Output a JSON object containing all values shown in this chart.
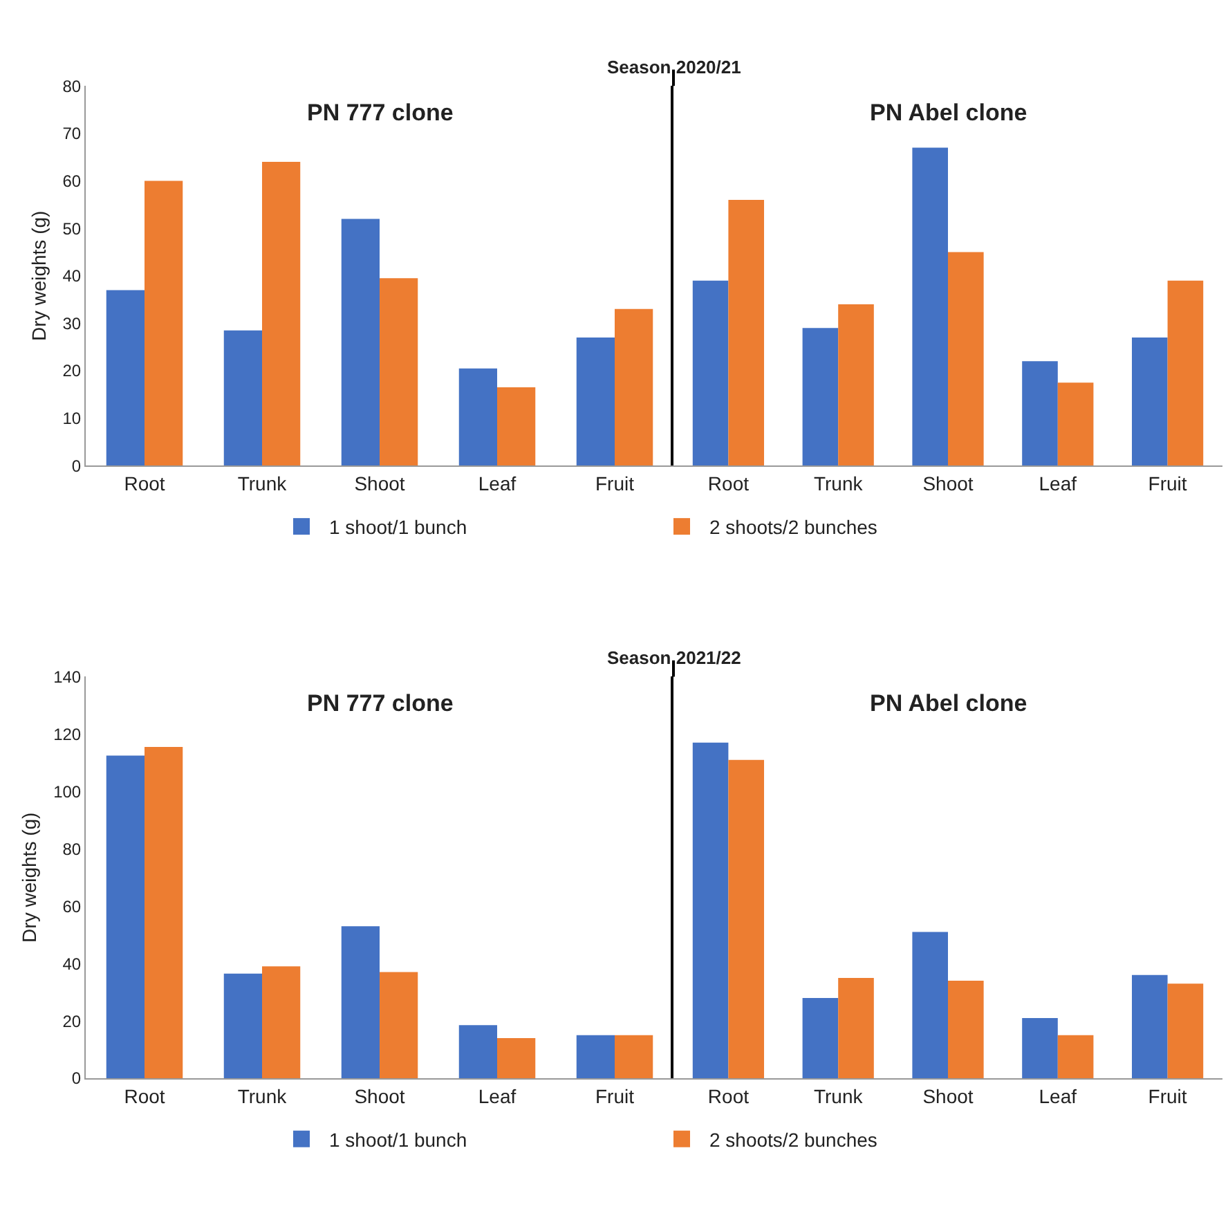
{
  "chart_data": [
    {
      "type": "bar",
      "title": "PN 777 clone",
      "ylabel": "Dry weights (g)",
      "annotations": [
        "Season 2020/21"
      ],
      "categories": [
        "Root",
        "Trunk",
        "Shoot",
        "Leaf",
        "Fruit"
      ],
      "ylim": [
        0,
        80
      ],
      "yticks": [
        0,
        10,
        20,
        30,
        40,
        50,
        60,
        70,
        80
      ],
      "legend": "bottom",
      "series": [
        {
          "name": "1 shoot/1 bunch",
          "color": "#4472c4",
          "values": [
            37,
            28.5,
            52,
            20.5,
            27
          ]
        },
        {
          "name": "2 shoots/2 bunches",
          "color": "#ed7d31",
          "values": [
            60,
            64,
            39.5,
            16.5,
            33
          ]
        }
      ]
    },
    {
      "type": "bar",
      "title": "PN Abel clone",
      "categories": [
        "Root",
        "Trunk",
        "Shoot",
        "Leaf",
        "Fruit"
      ],
      "ylim": [
        0,
        80
      ],
      "tick_labels": "x",
      "series": [
        {
          "color": "#4472c4",
          "values": [
            39,
            29,
            67,
            22,
            27
          ]
        },
        {
          "color": "#ed7d31",
          "values": [
            56,
            34,
            45,
            17.5,
            39
          ]
        }
      ]
    },
    {
      "type": "bar",
      "title": "PN 777 clone",
      "ylabel": "Dry weights (g)",
      "annotations": [
        "Season 2021/22"
      ],
      "categories": [
        "Root",
        "Trunk",
        "Shoot",
        "Leaf",
        "Fruit"
      ],
      "ylim": [
        0,
        140
      ],
      "yticks": [
        0,
        20,
        40,
        60,
        80,
        100,
        120,
        140
      ],
      "legend": "bottom",
      "series": [
        {
          "name": "1 shoot/1 bunch",
          "color": "#4472c4",
          "values": [
            112.5,
            36.5,
            53,
            18.5,
            15
          ]
        },
        {
          "name": "2 shoots/2 bunches",
          "color": "#ed7d31",
          "values": [
            115.5,
            39,
            37,
            14,
            15
          ]
        }
      ]
    },
    {
      "type": "bar",
      "title": "PN Abel clone",
      "categories": [
        "Root",
        "Trunk",
        "Shoot",
        "Leaf",
        "Fruit"
      ],
      "ylim": [
        0,
        140
      ],
      "tick_labels": "x",
      "series": [
        {
          "color": "#4472c4",
          "values": [
            117,
            28,
            51,
            21,
            36
          ]
        },
        {
          "color": "#ed7d31",
          "values": [
            111,
            35,
            34,
            15,
            33
          ]
        }
      ]
    }
  ]
}
